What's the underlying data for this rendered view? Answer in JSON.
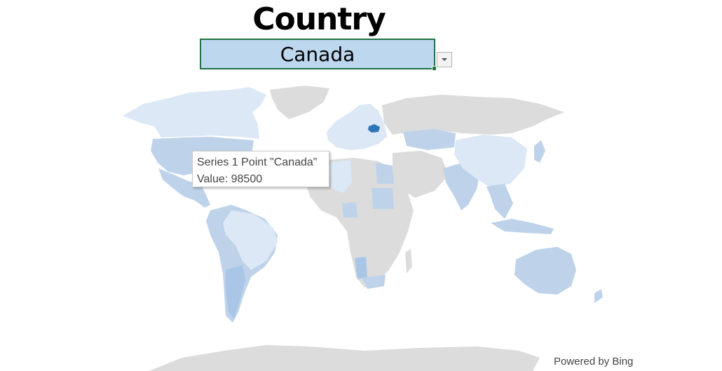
{
  "title": "Country",
  "selector": {
    "selected": "Canada"
  },
  "tooltip": {
    "series_line": "Series 1 Point \"Canada\"",
    "value_line": "Value: 98500"
  },
  "attribution": "Powered by Bing",
  "icons": {
    "dropdown": "chevron-down-icon"
  },
  "colors": {
    "no_data": "#dcdcdc",
    "light": "#dce8f5",
    "medium": "#bed3ea",
    "dark": "#a9c6e6",
    "highlight": "#2e75b6",
    "selection_border": "#217346",
    "selector_fill": "#bdd7ee"
  }
}
